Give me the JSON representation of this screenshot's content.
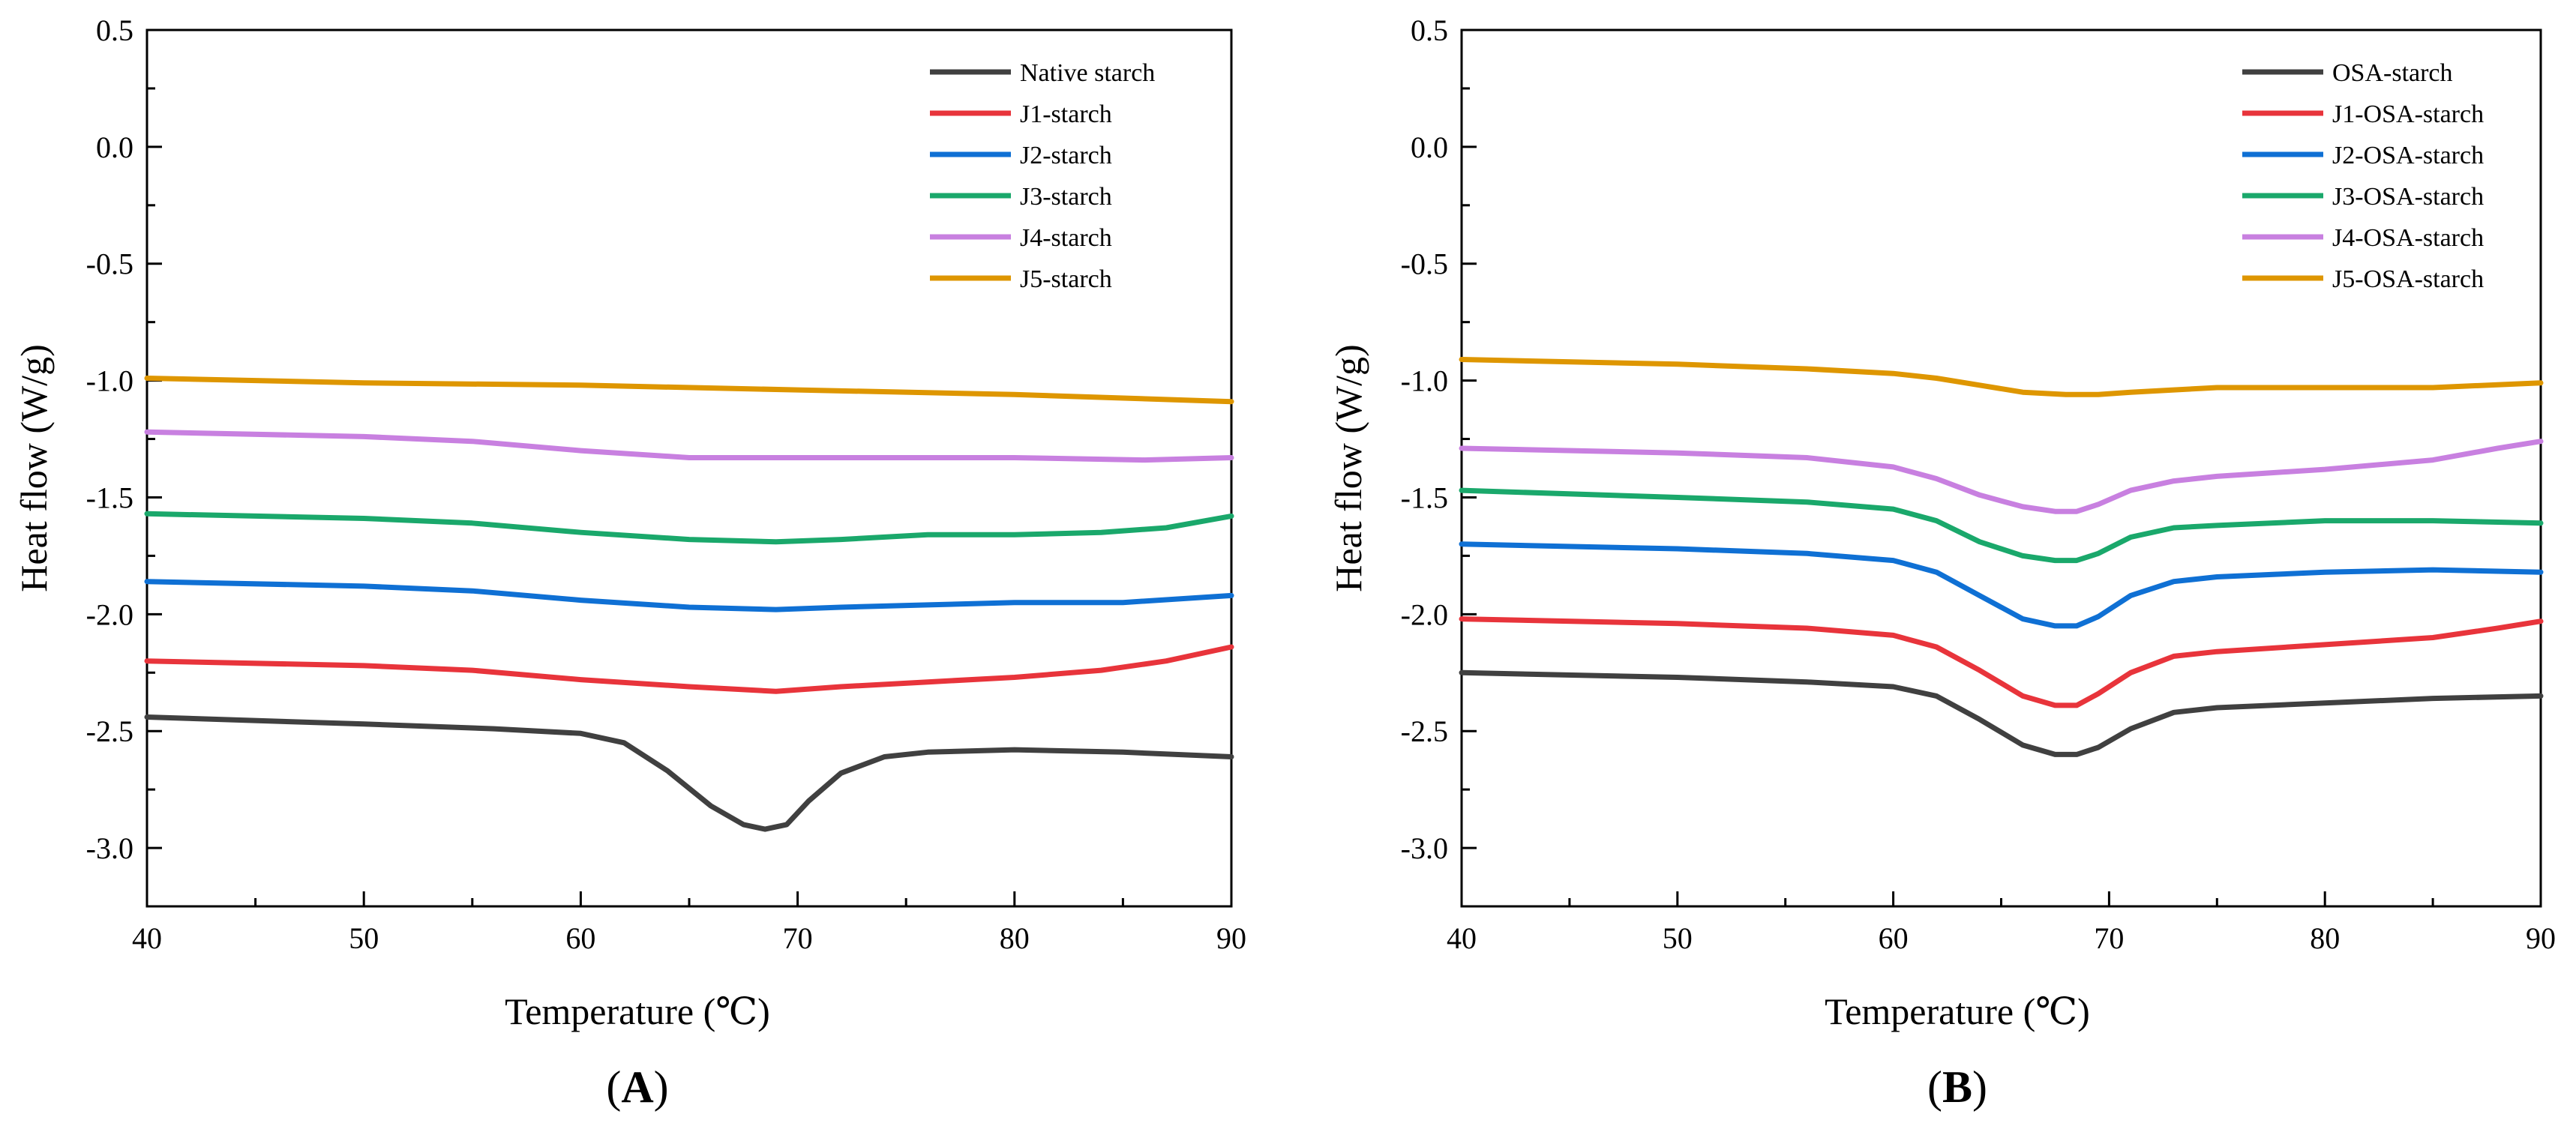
{
  "chart_data": [
    {
      "type": "line",
      "panel_label": "(A)",
      "panel_letter": "A",
      "xlabel": "Temperature (℃)",
      "ylabel": "Heat flow (W/g)",
      "xlim": [
        40,
        90
      ],
      "ylim": [
        -3.25,
        0.5
      ],
      "xticks": [
        40,
        50,
        60,
        70,
        80,
        90
      ],
      "xtick_labels": [
        "40",
        "50",
        "60",
        "70",
        "80",
        "90"
      ],
      "yticks": [
        0.5,
        0.0,
        -0.5,
        -1.0,
        -1.5,
        -2.0,
        -2.5,
        -3.0
      ],
      "ytick_labels": [
        "0.5",
        "0.0",
        "-0.5",
        "-1.0",
        "-1.5",
        "-2.0",
        "-2.5",
        "-3.0"
      ],
      "legend_position": "top-right",
      "series": [
        {
          "name": "Native starch",
          "color": "#404040",
          "x": [
            40,
            50,
            56,
            60,
            62,
            64,
            66,
            67.5,
            68.5,
            69.5,
            70.5,
            72,
            74,
            76,
            80,
            85,
            90
          ],
          "y": [
            -2.44,
            -2.47,
            -2.49,
            -2.51,
            -2.55,
            -2.67,
            -2.82,
            -2.9,
            -2.92,
            -2.9,
            -2.8,
            -2.68,
            -2.61,
            -2.59,
            -2.58,
            -2.59,
            -2.61
          ]
        },
        {
          "name": "J1-starch",
          "color": "#e8343b",
          "x": [
            40,
            50,
            55,
            60,
            65,
            69,
            72,
            76,
            80,
            84,
            87,
            90
          ],
          "y": [
            -2.2,
            -2.22,
            -2.24,
            -2.28,
            -2.31,
            -2.33,
            -2.31,
            -2.29,
            -2.27,
            -2.24,
            -2.2,
            -2.14
          ]
        },
        {
          "name": "J2-starch",
          "color": "#0f70d4",
          "x": [
            40,
            50,
            55,
            60,
            65,
            69,
            72,
            76,
            80,
            85,
            90
          ],
          "y": [
            -1.86,
            -1.88,
            -1.9,
            -1.94,
            -1.97,
            -1.98,
            -1.97,
            -1.96,
            -1.95,
            -1.95,
            -1.92
          ]
        },
        {
          "name": "J3-starch",
          "color": "#1aa86b",
          "x": [
            40,
            50,
            55,
            60,
            65,
            69,
            72,
            76,
            80,
            84,
            87,
            90
          ],
          "y": [
            -1.57,
            -1.59,
            -1.61,
            -1.65,
            -1.68,
            -1.69,
            -1.68,
            -1.66,
            -1.66,
            -1.65,
            -1.63,
            -1.58
          ]
        },
        {
          "name": "J4-starch",
          "color": "#c880e0",
          "x": [
            40,
            50,
            55,
            60,
            65,
            70,
            75,
            80,
            86,
            90
          ],
          "y": [
            -1.22,
            -1.24,
            -1.26,
            -1.3,
            -1.33,
            -1.33,
            -1.33,
            -1.33,
            -1.34,
            -1.33
          ]
        },
        {
          "name": "J5-starch",
          "color": "#de9600",
          "x": [
            40,
            50,
            60,
            70,
            80,
            90
          ],
          "y": [
            -0.99,
            -1.01,
            -1.02,
            -1.04,
            -1.06,
            -1.09
          ]
        }
      ]
    },
    {
      "type": "line",
      "panel_label": "(B)",
      "panel_letter": "B",
      "xlabel": "Temperature (℃)",
      "ylabel": "Heat flow (W/g)",
      "xlim": [
        40,
        90
      ],
      "ylim": [
        -3.25,
        0.5
      ],
      "xticks": [
        40,
        50,
        60,
        70,
        80,
        90
      ],
      "xtick_labels": [
        "40",
        "50",
        "60",
        "70",
        "80",
        "90"
      ],
      "yticks": [
        0.5,
        0.0,
        -0.5,
        -1.0,
        -1.5,
        -2.0,
        -2.5,
        -3.0
      ],
      "ytick_labels": [
        "0.5",
        "0.0",
        "-0.5",
        "-1.0",
        "-1.5",
        "-2.0",
        "-2.5",
        "-3.0"
      ],
      "legend_position": "top-right",
      "series": [
        {
          "name": "OSA-starch",
          "color": "#404040",
          "x": [
            40,
            50,
            56,
            60,
            62,
            64,
            66,
            67.5,
            68.5,
            69.5,
            71,
            73,
            75,
            80,
            85,
            90
          ],
          "y": [
            -2.25,
            -2.27,
            -2.29,
            -2.31,
            -2.35,
            -2.45,
            -2.56,
            -2.6,
            -2.6,
            -2.57,
            -2.49,
            -2.42,
            -2.4,
            -2.38,
            -2.36,
            -2.35
          ]
        },
        {
          "name": "J1-OSA-starch",
          "color": "#e8343b",
          "x": [
            40,
            50,
            56,
            60,
            62,
            64,
            66,
            67.5,
            68.5,
            69.5,
            71,
            73,
            75,
            80,
            85,
            88,
            90
          ],
          "y": [
            -2.02,
            -2.04,
            -2.06,
            -2.09,
            -2.14,
            -2.24,
            -2.35,
            -2.39,
            -2.39,
            -2.34,
            -2.25,
            -2.18,
            -2.16,
            -2.13,
            -2.1,
            -2.06,
            -2.03
          ]
        },
        {
          "name": "J2-OSA-starch",
          "color": "#0f70d4",
          "x": [
            40,
            50,
            56,
            60,
            62,
            64,
            66,
            67.5,
            68.5,
            69.5,
            71,
            73,
            75,
            80,
            85,
            90
          ],
          "y": [
            -1.7,
            -1.72,
            -1.74,
            -1.77,
            -1.82,
            -1.92,
            -2.02,
            -2.05,
            -2.05,
            -2.01,
            -1.92,
            -1.86,
            -1.84,
            -1.82,
            -1.81,
            -1.82
          ]
        },
        {
          "name": "J3-OSA-starch",
          "color": "#1aa86b",
          "x": [
            40,
            50,
            56,
            60,
            62,
            64,
            66,
            67.5,
            68.5,
            69.5,
            71,
            73,
            75,
            80,
            85,
            90
          ],
          "y": [
            -1.47,
            -1.5,
            -1.52,
            -1.55,
            -1.6,
            -1.69,
            -1.75,
            -1.77,
            -1.77,
            -1.74,
            -1.67,
            -1.63,
            -1.62,
            -1.6,
            -1.6,
            -1.61
          ]
        },
        {
          "name": "J4-OSA-starch",
          "color": "#c880e0",
          "x": [
            40,
            50,
            56,
            60,
            62,
            64,
            66,
            67.5,
            68.5,
            69.5,
            71,
            73,
            75,
            80,
            85,
            88,
            90
          ],
          "y": [
            -1.29,
            -1.31,
            -1.33,
            -1.37,
            -1.42,
            -1.49,
            -1.54,
            -1.56,
            -1.56,
            -1.53,
            -1.47,
            -1.43,
            -1.41,
            -1.38,
            -1.34,
            -1.29,
            -1.26
          ]
        },
        {
          "name": "J5-OSA-starch",
          "color": "#de9600",
          "x": [
            40,
            50,
            56,
            60,
            62,
            64,
            66,
            68,
            69.5,
            71,
            73,
            75,
            80,
            85,
            90
          ],
          "y": [
            -0.91,
            -0.93,
            -0.95,
            -0.97,
            -0.99,
            -1.02,
            -1.05,
            -1.06,
            -1.06,
            -1.05,
            -1.04,
            -1.03,
            -1.03,
            -1.03,
            -1.01
          ]
        }
      ]
    }
  ]
}
